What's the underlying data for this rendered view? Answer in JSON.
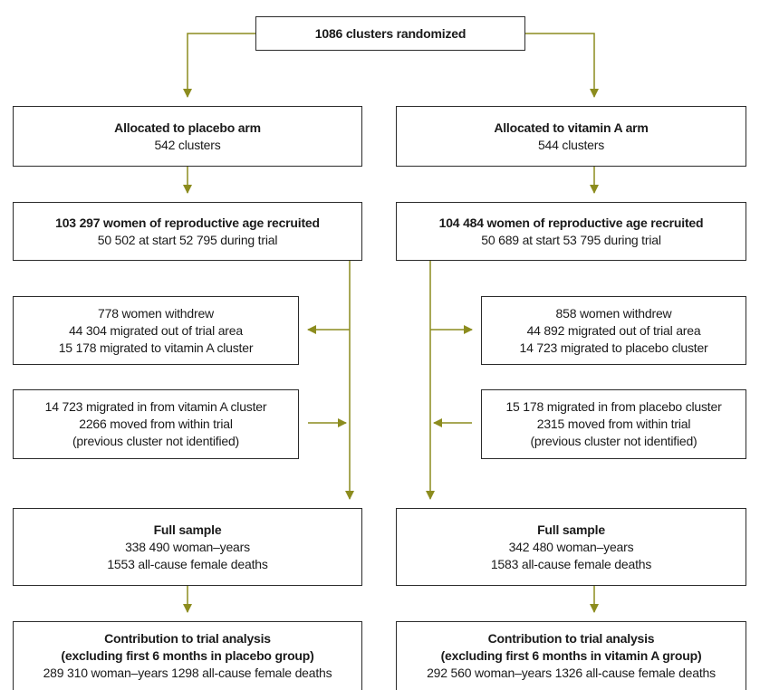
{
  "flow": {
    "top": {
      "title": "1086 clusters randomized"
    },
    "placebo": {
      "allocated": {
        "title": "Allocated to placebo arm",
        "line1": "542 clusters"
      },
      "recruited": {
        "title": "103 297 women of reproductive age recruited",
        "line1": "50 502 at start 52 795 during trial"
      },
      "out": {
        "line1": "778 women withdrew",
        "line2": "44 304 migrated out of trial area",
        "line3": "15 178 migrated to vitamin A cluster"
      },
      "in": {
        "line1": "14 723 migrated in from vitamin A cluster",
        "line2": "2266 moved from within trial",
        "line3": "(previous cluster not identified)"
      },
      "full": {
        "title": "Full sample",
        "line1": "338 490 woman–years",
        "line2": "1553 all-cause female deaths"
      },
      "analysis": {
        "title": "Contribution to trial analysis",
        "title2": "(excluding first 6 months in placebo group)",
        "line1": "289 310 woman–years 1298 all-cause female deaths"
      }
    },
    "vitamin": {
      "allocated": {
        "title": "Allocated to vitamin A arm",
        "line1": "544 clusters"
      },
      "recruited": {
        "title": "104 484 women of reproductive age recruited",
        "line1": "50 689 at start 53 795 during trial"
      },
      "out": {
        "line1": "858 women withdrew",
        "line2": "44 892 migrated out of trial area",
        "line3": "14 723 migrated to placebo cluster"
      },
      "in": {
        "line1": "15 178 migrated in from placebo cluster",
        "line2": "2315 moved from within trial",
        "line3": "(previous cluster not identified)"
      },
      "full": {
        "title": "Full sample",
        "line1": "342 480 woman–years",
        "line2": "1583 all-cause female deaths"
      },
      "analysis": {
        "title": "Contribution to trial analysis",
        "title2": "(excluding first 6 months in vitamin A group)",
        "line1": "292 560 woman–years 1326 all-cause female deaths"
      }
    }
  },
  "colors": {
    "arrow": "#8c8c1e",
    "border": "#2b2b2b"
  }
}
